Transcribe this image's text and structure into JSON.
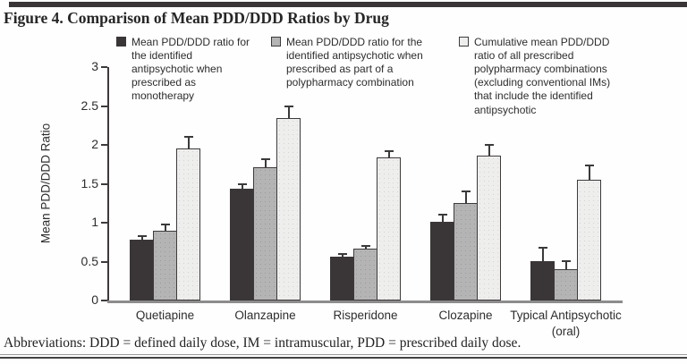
{
  "title": "Figure 4. Comparison of Mean PDD/DDD Ratios by Drug",
  "footnote": "Abbreviations: DDD = defined daily dose, IM = intramuscular, PDD = prescribed daily dose.",
  "colors": {
    "monotherapy_bar": "#3a3637",
    "polypharmacy_bar": "#b4b4b4",
    "cumulative_bar": "#eeeeed",
    "axis": "#3e3a3b",
    "baseline": "#8c8c8c",
    "top_rule": "#393536"
  },
  "chart_data": {
    "type": "bar",
    "title": "Figure 4. Comparison of Mean PDD/DDD Ratios by Drug",
    "xlabel": "",
    "ylabel": "Mean PDD/DDD Ratio",
    "ylim": [
      0,
      3
    ],
    "yticks": [
      0,
      0.5,
      1,
      1.5,
      2,
      2.5,
      3
    ],
    "grid": false,
    "legend_position": "top",
    "error_bars": "upper one-sided",
    "categories": [
      "Quetiapine",
      "Olanzapine",
      "Risperidone",
      "Clozapine",
      "Typical Antipsychotic (oral)"
    ],
    "series": [
      {
        "name": "Mean PDD/DDD ratio for the identified antipsychotic when prescribed as monotherapy",
        "color": "#3a3637",
        "values": [
          0.78,
          1.44,
          0.56,
          1.01,
          0.51
        ],
        "errors": [
          0.06,
          0.07,
          0.05,
          0.1,
          0.18
        ]
      },
      {
        "name": "Mean PDD/DDD ratio for the identified antipsychotic when prescribed as part of a polypharmacy combination",
        "color": "#b4b4b4",
        "values": [
          0.9,
          1.71,
          0.67,
          1.25,
          0.4
        ],
        "errors": [
          0.09,
          0.12,
          0.05,
          0.16,
          0.12
        ]
      },
      {
        "name": "Cumulative mean PDD/DDD ratio of all prescribed polypharmacy combinations (excluding conventional IMs) that include the identified antipsychotic",
        "color": "#eeeeed",
        "values": [
          1.95,
          2.35,
          1.84,
          1.86,
          1.55
        ],
        "errors": [
          0.16,
          0.16,
          0.09,
          0.15,
          0.19
        ]
      }
    ]
  }
}
